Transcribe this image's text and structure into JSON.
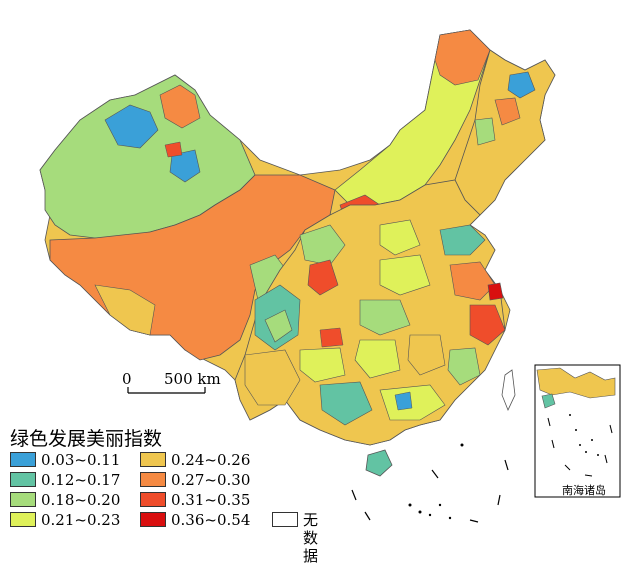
{
  "legend": {
    "title": "绿色发展美丽指数",
    "classes": [
      {
        "range": "0.03~0.11",
        "color": "#3aa0d8"
      },
      {
        "range": "0.12~0.17",
        "color": "#62c3a3"
      },
      {
        "range": "0.18~0.20",
        "color": "#a6dc7c"
      },
      {
        "range": "0.21~0.23",
        "color": "#dff15a"
      },
      {
        "range": "0.24~0.26",
        "color": "#efc64f"
      },
      {
        "range": "0.27~0.30",
        "color": "#f58a43"
      },
      {
        "range": "0.31~0.35",
        "color": "#ef4d2b"
      },
      {
        "range": "0.36~0.54",
        "color": "#d90f0f"
      }
    ],
    "no_data": {
      "label": "无数据",
      "color": "#ffffff"
    }
  },
  "scale_bar": {
    "start": "0",
    "end": "500 km"
  },
  "inset": {
    "label": "南海诸岛"
  }
}
